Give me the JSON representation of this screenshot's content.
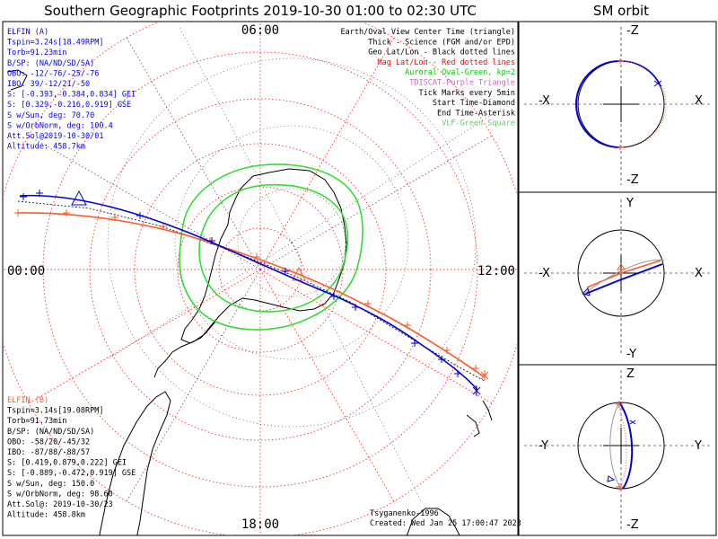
{
  "title": "Southern Geographic Footprints 2019-10-30 01:00 to 02:30 UTC",
  "sm_title": "SM orbit",
  "map": {
    "clock_labels": {
      "top": "06:00",
      "left": "00:00",
      "right": "12:00",
      "bottom": "18:00"
    },
    "legend": [
      {
        "text": "Earth/Oval View Center Time (triangle)",
        "color": "#000000"
      },
      {
        "text": "Thick - Science (FGM and/or EPD)",
        "color": "#000000"
      },
      {
        "text": "Geo Lat/Lon - Black dotted lines",
        "color": "#000000"
      },
      {
        "text": "Mag Lat/Lon - Red dotted lines",
        "color": "#ff0000"
      },
      {
        "text": "Auroral Oval-Green, kp=2",
        "color": "#00cc00"
      },
      {
        "text": "TDISCAT-Purple Triangle",
        "color": "#cc66cc"
      },
      {
        "text": "Tick Marks every 5min",
        "color": "#000000"
      },
      {
        "text": "Start Time-Diamond",
        "color": "#000000"
      },
      {
        "text": "End Time-Asterisk",
        "color": "#000000"
      },
      {
        "text": "VLF-Green Square",
        "color": "#66cc66"
      }
    ],
    "elfin_a": {
      "color": "#0000ff",
      "lines": [
        "ELFIN (A)",
        "Tspin=3.24s[18.49RPM]",
        "Torb=91.23min",
        "B/SP: (NA/ND/SD/SA)",
        "OBO: -12/-76/-25/-76",
        "IBO: 39/-12/21/-50",
        "S: [-0.393,-0.384,0.834] GEI",
        "S: [0.329,-0.216,0.919] GSE",
        "S w/Sun, deg: 70.70",
        "S w/OrbNorm, deg: 100.4",
        "Att.Sol@2019-10-30/01",
        "Altitude: 458.7km"
      ]
    },
    "elfin_b": {
      "color": "#ff5a2a",
      "lines": [
        "ELFIN (B)",
        "Tspin=3.14s[19.08RPM]",
        "Torb=91.73min",
        "B/SP: (NA/ND/SD/SA)",
        "OBO: -58/20/-45/32",
        "IBO: -87/88/-88/57",
        "S: [0.419,0.879,0.222] GEI",
        "S: [-0.889,-0.472,0.919] GSE",
        "S w/Sun, deg: 150.0",
        "S w/OrbNorm, deg: 98.60",
        "Att.Sol@: 2019-10-30/23",
        "Altitude: 458.8km"
      ]
    },
    "credits": [
      "Tsyganenko-1996",
      "Created: Wed Jan 25 17:00:47 2023"
    ],
    "colors": {
      "mag_grid": "#ff3030",
      "geo_grid": "#000000",
      "oval": "#33dd33",
      "elfin_a": "#0000dd",
      "elfin_b": "#ff5a2a"
    }
  },
  "panels": [
    {
      "top": "-Z",
      "bottom": "-Z",
      "left": "-X",
      "right": "X"
    },
    {
      "top": "Y",
      "bottom": "-Y",
      "left": "-X",
      "right": "X"
    },
    {
      "top": "Z",
      "bottom": "-Z",
      "left": "-Y",
      "right": "Y"
    }
  ]
}
